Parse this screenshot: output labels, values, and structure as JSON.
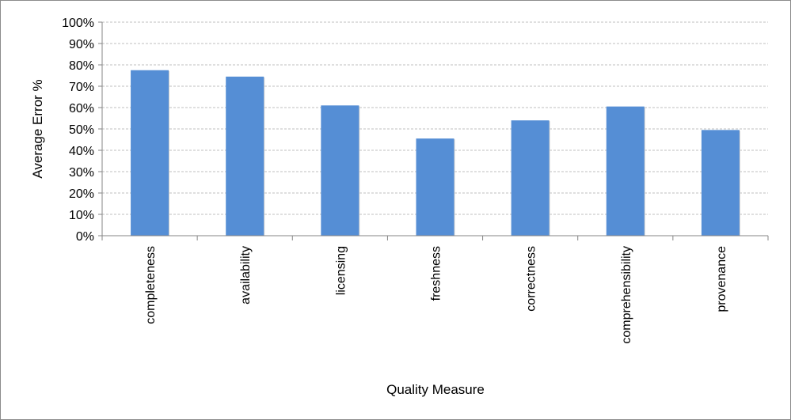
{
  "chart_data": {
    "type": "bar",
    "title": "",
    "xlabel": "Quality Measure",
    "ylabel": "Average Error %",
    "categories": [
      "completeness",
      "availability",
      "licensing",
      "freshness",
      "correctness",
      "comprehensibility",
      "provenance"
    ],
    "values": [
      77.5,
      74.5,
      61,
      45.5,
      54,
      60.5,
      49.5
    ],
    "ylim": [
      0,
      100
    ],
    "y_ticks": [
      0,
      10,
      20,
      30,
      40,
      50,
      60,
      70,
      80,
      90,
      100
    ],
    "y_tick_labels": [
      "0%",
      "10%",
      "20%",
      "30%",
      "40%",
      "50%",
      "60%",
      "70%",
      "80%",
      "90%",
      "100%"
    ],
    "grid": true,
    "grid_style": "dashed",
    "legend": "none",
    "bar_color": "#558ed5",
    "x_label_orientation": "vertical"
  }
}
